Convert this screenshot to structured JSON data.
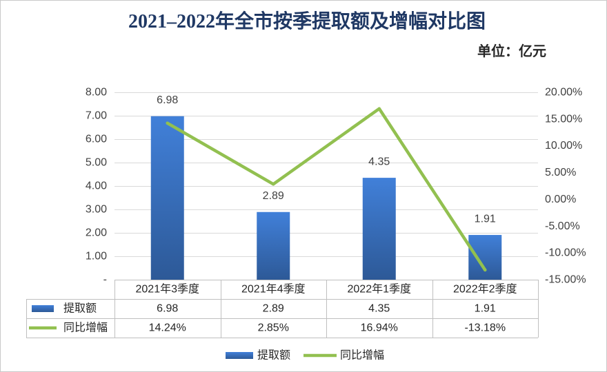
{
  "chart_data": {
    "type": "bar",
    "title": "2021–2022年全市按季提取额及增幅对比图",
    "unit_label": "单位：亿元",
    "categories": [
      "2021年3季度",
      "2021年4季度",
      "2022年1季度",
      "2022年2季度"
    ],
    "series": [
      {
        "name": "提取额",
        "type": "bar",
        "axis": "left",
        "values": [
          6.98,
          2.89,
          4.35,
          1.91
        ],
        "labels": [
          "6.98",
          "2.89",
          "4.35",
          "1.91"
        ],
        "color": "#3A72C2",
        "show_data_labels": true
      },
      {
        "name": "同比增幅",
        "type": "line",
        "axis": "right",
        "values": [
          14.24,
          2.85,
          16.94,
          -13.18
        ],
        "labels": [
          "14.24%",
          "2.85%",
          "16.94%",
          "-13.18%"
        ],
        "color": "#92C050",
        "show_data_labels": false
      }
    ],
    "y_left": {
      "min": 0,
      "max": 8,
      "ticks": [
        0,
        1,
        2,
        3,
        4,
        5,
        6,
        7,
        8
      ],
      "tick_labels": [
        "-",
        "1.00",
        "2.00",
        "3.00",
        "4.00",
        "5.00",
        "6.00",
        "7.00",
        "8.00"
      ]
    },
    "y_right": {
      "min": -15,
      "max": 20,
      "ticks": [
        -15,
        -10,
        -5,
        0,
        5,
        10,
        15,
        20
      ],
      "tick_labels": [
        "-15.00%",
        "-10.00%",
        "-5.00%",
        "0.00%",
        "5.00%",
        "10.00%",
        "15.00%",
        "20.00%"
      ]
    },
    "grid": true,
    "legend": "bottom",
    "data_table": true
  }
}
